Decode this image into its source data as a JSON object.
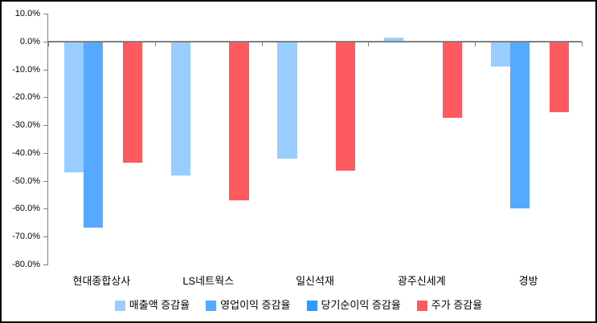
{
  "chart_data": {
    "type": "bar",
    "title": "",
    "categories": [
      "현대종합상사",
      "LS네트웍스",
      "일신석재",
      "광주신세계",
      "경방"
    ],
    "series": [
      {
        "name": "매출액 증감율",
        "color": "#99CCFF",
        "values": [
          -47,
          -48,
          -42,
          1.5,
          -9
        ]
      },
      {
        "name": "영업이익 증감율",
        "color": "#55AAFF",
        "values": [
          -67,
          null,
          null,
          null,
          -60
        ]
      },
      {
        "name": "당기순이익 증감율",
        "color": "#3399FF",
        "values": [
          null,
          null,
          null,
          null,
          null
        ]
      },
      {
        "name": "주가 증감율",
        "color": "#FF5A5F",
        "values": [
          -43.5,
          -57,
          -46.5,
          -27.5,
          -25.5
        ]
      }
    ],
    "y_axis": {
      "min": -80,
      "max": 10,
      "step": 10,
      "labels": [
        "10.0%",
        "0.0%",
        "-10.0%",
        "-20.0%",
        "-30.0%",
        "-40.0%",
        "-50.0%",
        "-60.0%",
        "-70.0%",
        "-80.0%"
      ]
    },
    "grid": false,
    "legend_position": "bottom",
    "axis_color": "#808080",
    "background_color": "#FFFFFF"
  }
}
